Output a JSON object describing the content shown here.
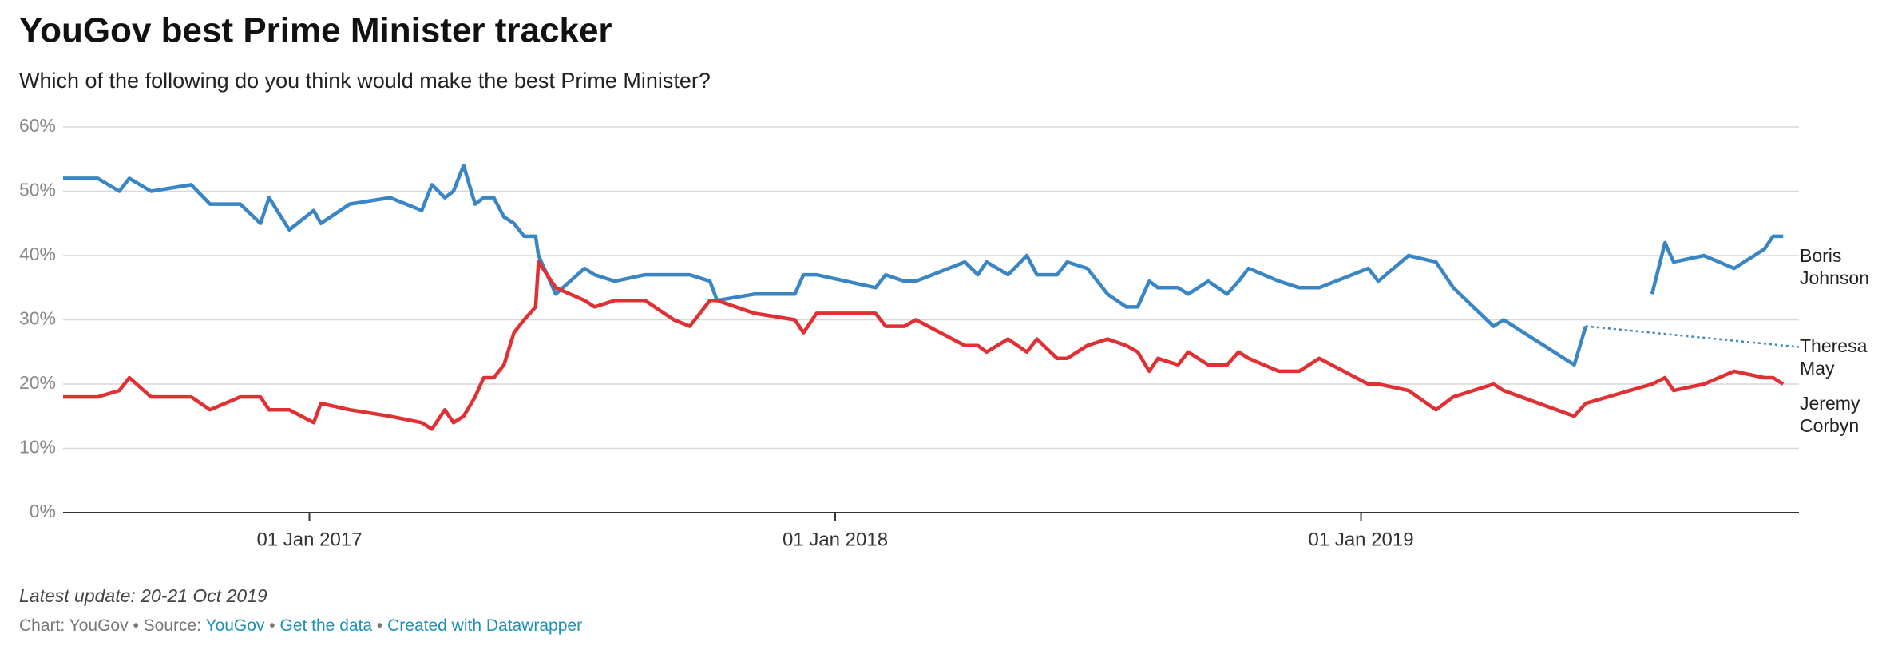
{
  "chart_data": {
    "type": "line",
    "title": "YouGov best Prime Minister tracker",
    "subtitle": "Which of the following do you think would make the best Prime Minister?",
    "x": [
      "2016-07-14",
      "2016-08-07",
      "2016-08-22",
      "2016-08-29",
      "2016-09-13",
      "2016-10-11",
      "2016-10-24",
      "2016-11-14",
      "2016-11-28",
      "2016-12-04",
      "2016-12-18",
      "2017-01-04",
      "2017-01-09",
      "2017-01-29",
      "2017-02-26",
      "2017-03-20",
      "2017-03-27",
      "2017-04-05",
      "2017-04-11",
      "2017-04-18",
      "2017-04-26",
      "2017-05-02",
      "2017-05-09",
      "2017-05-16",
      "2017-05-23",
      "2017-05-30",
      "2017-06-07",
      "2017-06-09",
      "2017-06-21",
      "2017-07-11",
      "2017-07-18",
      "2017-08-01",
      "2017-08-22",
      "2017-09-11",
      "2017-09-22",
      "2017-10-06",
      "2017-10-11",
      "2017-11-06",
      "2017-12-04",
      "2017-12-10",
      "2017-12-19",
      "2018-01-29",
      "2018-02-05",
      "2018-02-18",
      "2018-02-26",
      "2018-04-01",
      "2018-04-10",
      "2018-04-16",
      "2018-05-01",
      "2018-05-14",
      "2018-05-21",
      "2018-06-04",
      "2018-06-11",
      "2018-06-25",
      "2018-07-09",
      "2018-07-22",
      "2018-07-30",
      "2018-08-07",
      "2018-08-13",
      "2018-08-27",
      "2018-09-03",
      "2018-09-17",
      "2018-09-30",
      "2018-10-08",
      "2018-10-15",
      "2018-11-05",
      "2018-11-19",
      "2018-12-03",
      "2019-01-06",
      "2019-01-13",
      "2019-02-03",
      "2019-02-22",
      "2019-03-06",
      "2019-04-03",
      "2019-04-10",
      "2019-05-29",
      "2019-06-06",
      "2019-07-22",
      "2019-07-31",
      "2019-08-06",
      "2019-08-27",
      "2019-09-17",
      "2019-10-08",
      "2019-10-14",
      "2019-10-21"
    ],
    "series": [
      {
        "name": "Theresa May",
        "color": "#3a86c4",
        "values": [
          52,
          52,
          50,
          52,
          50,
          51,
          48,
          48,
          45,
          49,
          44,
          47,
          45,
          48,
          49,
          47,
          51,
          49,
          50,
          54,
          48,
          49,
          49,
          46,
          45,
          43,
          43,
          40,
          34,
          38,
          37,
          36,
          37,
          37,
          37,
          36,
          33,
          34,
          34,
          37,
          37,
          35,
          37,
          36,
          36,
          39,
          37,
          39,
          37,
          40,
          37,
          37,
          39,
          38,
          34,
          32,
          32,
          36,
          35,
          35,
          34,
          36,
          34,
          36,
          38,
          36,
          35,
          35,
          38,
          36,
          40,
          39,
          35,
          29,
          30,
          23,
          29,
          null,
          null,
          null,
          null,
          null,
          null,
          null,
          null
        ]
      },
      {
        "name": "Boris Johnson",
        "color": "#3a86c4",
        "values": [
          null,
          null,
          null,
          null,
          null,
          null,
          null,
          null,
          null,
          null,
          null,
          null,
          null,
          null,
          null,
          null,
          null,
          null,
          null,
          null,
          null,
          null,
          null,
          null,
          null,
          null,
          null,
          null,
          null,
          null,
          null,
          null,
          null,
          null,
          null,
          null,
          null,
          null,
          null,
          null,
          null,
          null,
          null,
          null,
          null,
          null,
          null,
          null,
          null,
          null,
          null,
          null,
          null,
          null,
          null,
          null,
          null,
          null,
          null,
          null,
          null,
          null,
          null,
          null,
          null,
          null,
          null,
          null,
          null,
          null,
          null,
          null,
          null,
          null,
          null,
          null,
          null,
          34,
          42,
          39,
          40,
          38,
          41,
          43,
          43
        ]
      },
      {
        "name": "Jeremy Corbyn",
        "color": "#e03033",
        "values": [
          18,
          18,
          19,
          21,
          18,
          18,
          16,
          18,
          18,
          16,
          16,
          14,
          17,
          16,
          15,
          14,
          13,
          16,
          14,
          15,
          18,
          21,
          21,
          23,
          28,
          30,
          32,
          39,
          35,
          33,
          32,
          33,
          33,
          30,
          29,
          33,
          33,
          31,
          30,
          28,
          31,
          31,
          29,
          29,
          30,
          26,
          26,
          25,
          27,
          25,
          27,
          24,
          24,
          26,
          27,
          26,
          25,
          22,
          24,
          23,
          25,
          23,
          23,
          25,
          24,
          22,
          22,
          24,
          20,
          20,
          19,
          16,
          18,
          20,
          19,
          15,
          17,
          20,
          21,
          19,
          20,
          22,
          21,
          21,
          20
        ]
      }
    ],
    "xlim": [
      "2016-07-14",
      "2019-11-01"
    ],
    "xticks": [
      {
        "value": "2017-01-01",
        "label": "01 Jan 2017"
      },
      {
        "value": "2018-01-01",
        "label": "01 Jan 2018"
      },
      {
        "value": "2019-01-01",
        "label": "01 Jan 2019"
      }
    ],
    "ylim": [
      0,
      60
    ],
    "yticks": [
      {
        "value": 0,
        "label": "0%"
      },
      {
        "value": 10,
        "label": "10%"
      },
      {
        "value": 20,
        "label": "20%"
      },
      {
        "value": 30,
        "label": "30%"
      },
      {
        "value": 40,
        "label": "40%"
      },
      {
        "value": 50,
        "label": "50%"
      },
      {
        "value": 60,
        "label": "60%"
      }
    ],
    "grid": true,
    "footer": {
      "update": "Latest update: 20-21 Oct 2019",
      "byline": "Chart: YouGov",
      "separator": "•",
      "source_label": "Source:",
      "source": "YouGov",
      "links": [
        "Get the data",
        "Created with Datawrapper"
      ]
    }
  }
}
